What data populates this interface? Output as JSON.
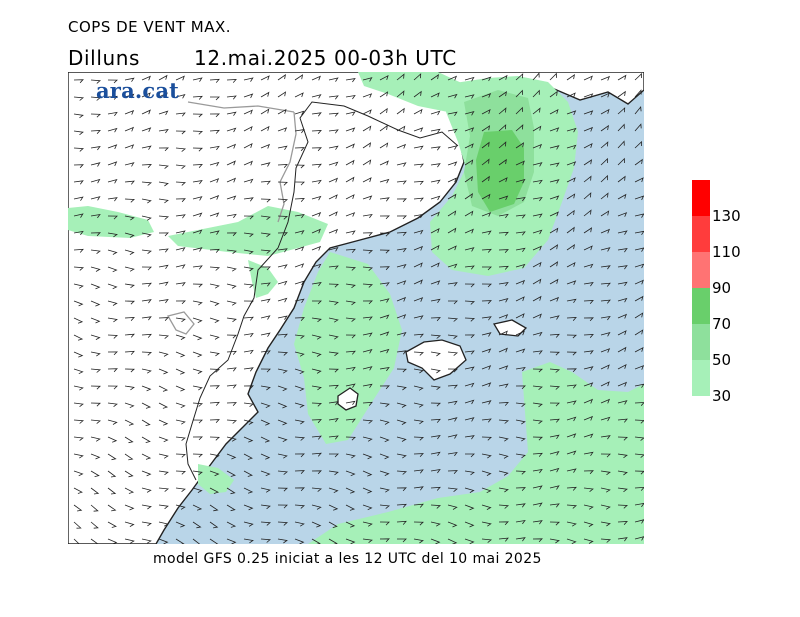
{
  "header": {
    "title": "COPS DE VENT MAX.",
    "day": "Dilluns",
    "datetime": "12.mai.2025 00-03h UTC"
  },
  "logo": {
    "text": "ara.cat",
    "color": "#1b4f9c"
  },
  "footer": {
    "text": "model GFS 0.25 iniciat a les 12 UTC del 10 mai 2025"
  },
  "colors": {
    "sea": "#b9d5e8",
    "land": "#ffffff",
    "level_30": "#a6f0b8",
    "level_50": "#8ee09c",
    "level_70": "#69cf6b",
    "level_90": "#ff7373",
    "level_110": "#ff3c3c",
    "level_130": "#ff0000",
    "coast": "#222222",
    "border": "#9a9a9a",
    "barb": "#222222"
  },
  "legend": {
    "ticks": [
      "30",
      "50",
      "70",
      "90",
      "110",
      "130"
    ],
    "levels": [
      {
        "color": "#a6f0b8"
      },
      {
        "color": "#8ee09c"
      },
      {
        "color": "#69cf6b"
      },
      {
        "color": "#ff7373"
      },
      {
        "color": "#ff3c3c"
      },
      {
        "color": "#ff0000"
      }
    ]
  }
}
